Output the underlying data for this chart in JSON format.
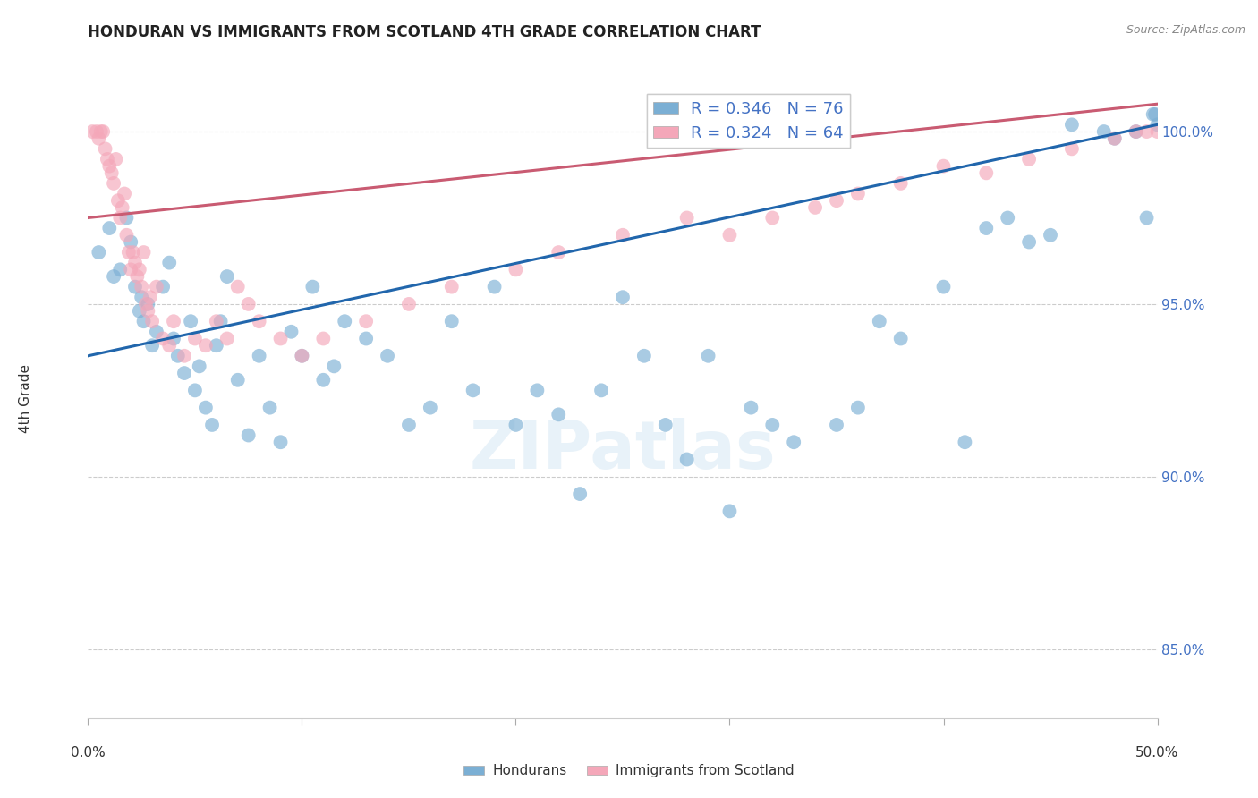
{
  "title": "HONDURAN VS IMMIGRANTS FROM SCOTLAND 4TH GRADE CORRELATION CHART",
  "source": "Source: ZipAtlas.com",
  "ylabel": "4th Grade",
  "xlim": [
    0.0,
    50.0
  ],
  "ylim": [
    83.0,
    101.5
  ],
  "yticks": [
    85.0,
    90.0,
    95.0,
    100.0
  ],
  "ytick_labels": [
    "85.0%",
    "90.0%",
    "95.0%",
    "100.0%"
  ],
  "xticks": [
    0.0,
    10.0,
    20.0,
    30.0,
    40.0,
    50.0
  ],
  "legend_blue_r": "R = 0.346",
  "legend_blue_n": "N = 76",
  "legend_pink_r": "R = 0.324",
  "legend_pink_n": "N = 64",
  "blue_color": "#7bafd4",
  "blue_line_color": "#2166ac",
  "pink_color": "#f4a7b9",
  "pink_line_color": "#c95b72",
  "blue_scatter_x": [
    0.5,
    1.0,
    1.2,
    1.5,
    1.8,
    2.0,
    2.2,
    2.4,
    2.5,
    2.6,
    2.8,
    3.0,
    3.2,
    3.5,
    3.8,
    4.0,
    4.2,
    4.5,
    4.8,
    5.0,
    5.2,
    5.5,
    5.8,
    6.0,
    6.2,
    6.5,
    7.0,
    7.5,
    8.0,
    8.5,
    9.0,
    9.5,
    10.0,
    10.5,
    11.0,
    11.5,
    12.0,
    13.0,
    14.0,
    15.0,
    16.0,
    17.0,
    18.0,
    19.0,
    20.0,
    21.0,
    22.0,
    23.0,
    24.0,
    25.0,
    26.0,
    27.0,
    28.0,
    29.0,
    30.0,
    31.0,
    32.0,
    33.0,
    35.0,
    36.0,
    37.0,
    38.0,
    40.0,
    41.0,
    42.0,
    43.0,
    44.0,
    45.0,
    46.0,
    47.5,
    48.0,
    49.0,
    49.5,
    49.8,
    49.9,
    50.0
  ],
  "blue_scatter_y": [
    96.5,
    97.2,
    95.8,
    96.0,
    97.5,
    96.8,
    95.5,
    94.8,
    95.2,
    94.5,
    95.0,
    93.8,
    94.2,
    95.5,
    96.2,
    94.0,
    93.5,
    93.0,
    94.5,
    92.5,
    93.2,
    92.0,
    91.5,
    93.8,
    94.5,
    95.8,
    92.8,
    91.2,
    93.5,
    92.0,
    91.0,
    94.2,
    93.5,
    95.5,
    92.8,
    93.2,
    94.5,
    94.0,
    93.5,
    91.5,
    92.0,
    94.5,
    92.5,
    95.5,
    91.5,
    92.5,
    91.8,
    89.5,
    92.5,
    95.2,
    93.5,
    91.5,
    90.5,
    93.5,
    89.0,
    92.0,
    91.5,
    91.0,
    91.5,
    92.0,
    94.5,
    94.0,
    95.5,
    91.0,
    97.2,
    97.5,
    96.8,
    97.0,
    100.2,
    100.0,
    99.8,
    100.0,
    97.5,
    100.5,
    100.5,
    100.2
  ],
  "pink_scatter_x": [
    0.2,
    0.4,
    0.5,
    0.6,
    0.7,
    0.8,
    0.9,
    1.0,
    1.1,
    1.2,
    1.3,
    1.4,
    1.5,
    1.6,
    1.7,
    1.8,
    1.9,
    2.0,
    2.1,
    2.2,
    2.3,
    2.4,
    2.5,
    2.6,
    2.7,
    2.8,
    2.9,
    3.0,
    3.2,
    3.5,
    3.8,
    4.0,
    4.5,
    5.0,
    5.5,
    6.0,
    6.5,
    7.0,
    7.5,
    8.0,
    9.0,
    10.0,
    11.0,
    13.0,
    15.0,
    17.0,
    20.0,
    22.0,
    25.0,
    28.0,
    30.0,
    32.0,
    34.0,
    35.0,
    36.0,
    38.0,
    40.0,
    42.0,
    44.0,
    46.0,
    48.0,
    49.0,
    49.5,
    50.0
  ],
  "pink_scatter_y": [
    100.0,
    100.0,
    99.8,
    100.0,
    100.0,
    99.5,
    99.2,
    99.0,
    98.8,
    98.5,
    99.2,
    98.0,
    97.5,
    97.8,
    98.2,
    97.0,
    96.5,
    96.0,
    96.5,
    96.2,
    95.8,
    96.0,
    95.5,
    96.5,
    95.0,
    94.8,
    95.2,
    94.5,
    95.5,
    94.0,
    93.8,
    94.5,
    93.5,
    94.0,
    93.8,
    94.5,
    94.0,
    95.5,
    95.0,
    94.5,
    94.0,
    93.5,
    94.0,
    94.5,
    95.0,
    95.5,
    96.0,
    96.5,
    97.0,
    97.5,
    97.0,
    97.5,
    97.8,
    98.0,
    98.2,
    98.5,
    99.0,
    98.8,
    99.2,
    99.5,
    99.8,
    100.0,
    100.0,
    100.0
  ],
  "blue_line_x0": 0.0,
  "blue_line_x1": 50.0,
  "blue_line_y0": 93.5,
  "blue_line_y1": 100.2,
  "pink_line_x0": 0.0,
  "pink_line_x1": 50.0,
  "pink_line_y0": 97.5,
  "pink_line_y1": 100.8
}
